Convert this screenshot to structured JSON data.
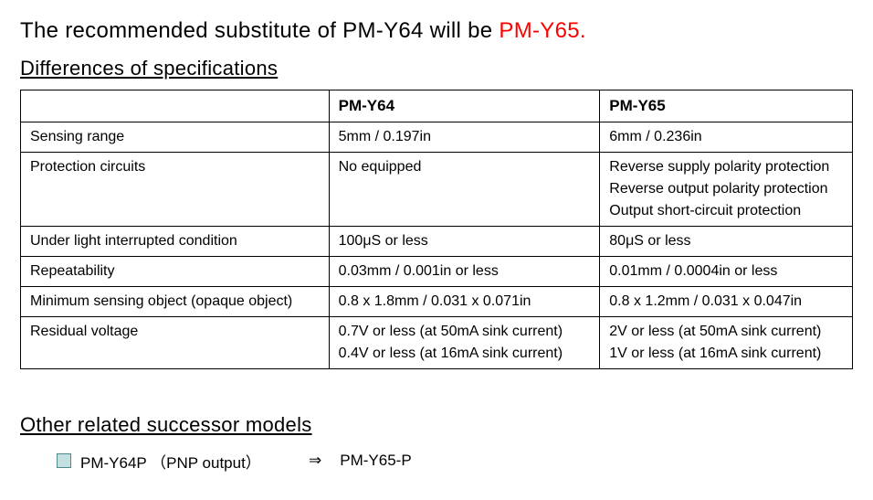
{
  "headline": {
    "prefix": "The recommended substitute of PM-Y64 will be ",
    "substitute": " PM-Y65.",
    "substitute_color": "#ff0000"
  },
  "spec_section": {
    "title": "Differences of specifications",
    "columns": {
      "spec": "",
      "product_a": "PM-Y64",
      "product_b": "PM-Y65"
    },
    "rows": [
      {
        "label": "Sensing range",
        "a": "5mm / 0.197in",
        "b": "6mm / 0.236in"
      },
      {
        "label": "Protection circuits",
        "a": "No equipped",
        "b_lines": [
          "Reverse supply polarity protection",
          "Reverse output polarity protection",
          "Output short-circuit protection"
        ]
      },
      {
        "label": "Under light interrupted condition",
        "a": "100μS or less",
        "b": "80μS or less"
      },
      {
        "label": "Repeatability",
        "a": "0.03mm / 0.001in or less",
        "b": "0.01mm / 0.0004in or less"
      },
      {
        "label": "Minimum sensing object (opaque object)",
        "a": "0.8 x 1.8mm / 0.031 x 0.071in",
        "b": "0.8 x 1.2mm / 0.031 x 0.047in"
      },
      {
        "label": "Residual voltage",
        "a_lines": [
          "0.7V or less (at 50mA sink current)",
          "0.4V or less (at 16mA sink current)"
        ],
        "b_lines": [
          "2V or less (at 50mA sink current)",
          "1V or less (at 16mA sink current)"
        ]
      }
    ]
  },
  "successor_section": {
    "title": "Other related successor models",
    "bullet_color": "#c5e0e0",
    "bullet_border": "#4a8a8a",
    "items": [
      {
        "old": "PM-Y64P （PNP output）",
        "arrow": "⇒",
        "new": "PM-Y65-P"
      }
    ]
  },
  "style": {
    "text_color": "#000000",
    "background": "#ffffff",
    "font_family": "MS PGothic, Meiryo, Arial, sans-serif",
    "headline_fontsize": 24,
    "section_title_fontsize": 22,
    "table_fontsize": 16,
    "table_border_color": "#000000"
  }
}
